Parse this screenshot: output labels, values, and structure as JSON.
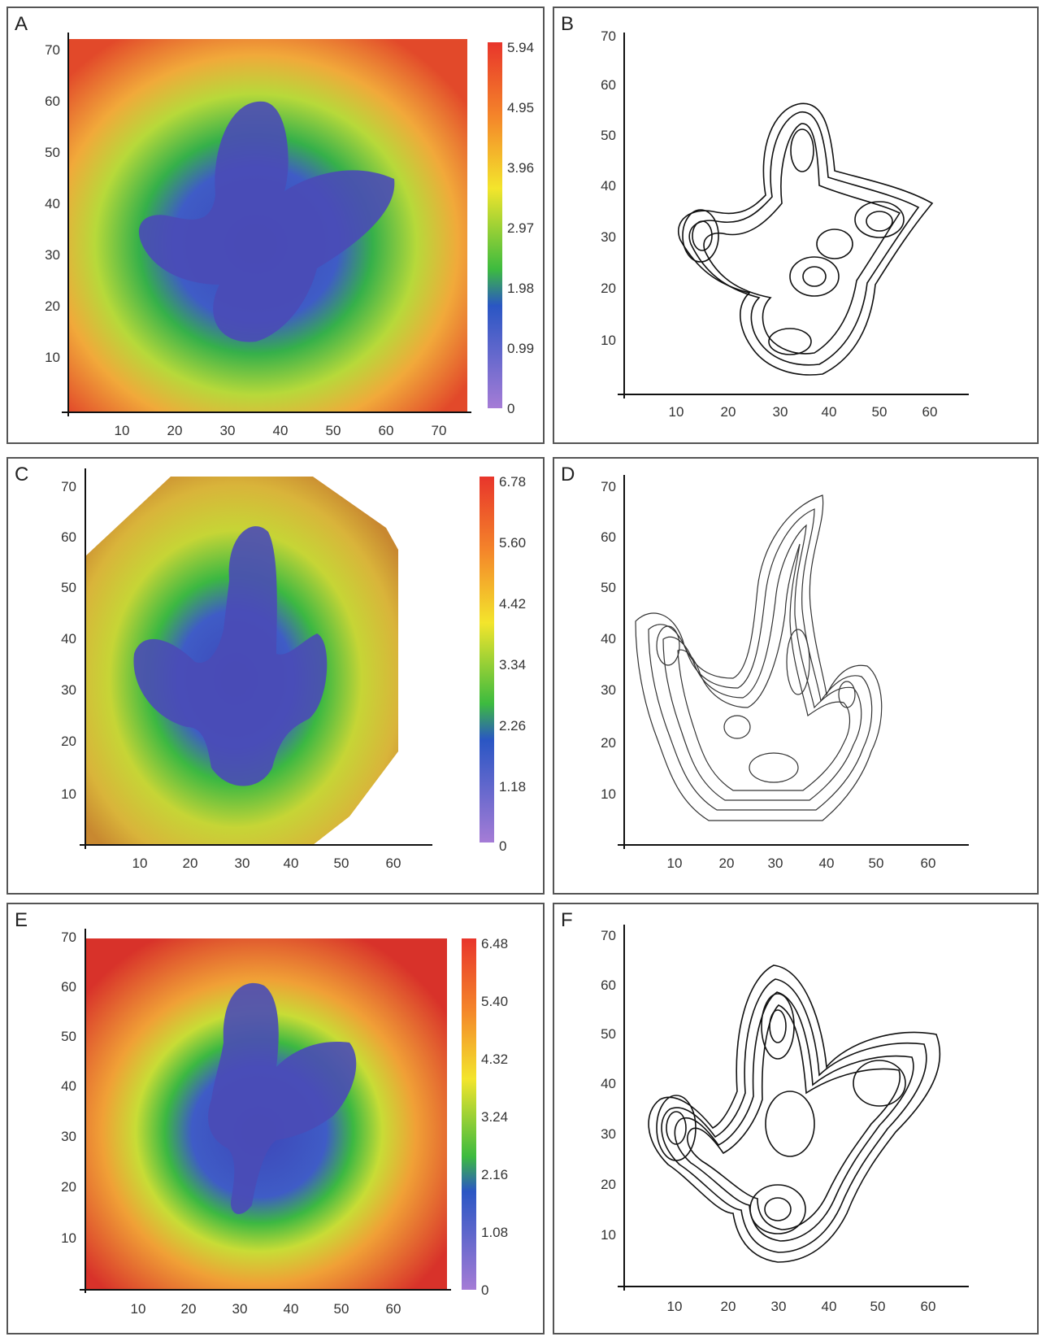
{
  "figure": {
    "panels": [
      {
        "letter": "A",
        "kind": "heatmap",
        "x_ticks": [
          10,
          20,
          30,
          40,
          50,
          60,
          70
        ],
        "y_ticks": [
          10,
          20,
          30,
          40,
          50,
          60,
          70
        ],
        "xlim": [
          0,
          74
        ],
        "ylim": [
          0,
          72
        ],
        "colorbar": [
          "5.94",
          "4.95",
          "3.96",
          "2.97",
          "1.98",
          "0.99",
          "0"
        ]
      },
      {
        "letter": "B",
        "kind": "contour",
        "x_ticks": [
          10,
          20,
          30,
          40,
          50,
          60
        ],
        "y_ticks": [
          10,
          20,
          30,
          40,
          50,
          60,
          70
        ],
        "xlim": [
          0,
          68
        ],
        "ylim": [
          0,
          73
        ]
      },
      {
        "letter": "C",
        "kind": "heatmap",
        "x_ticks": [
          10,
          20,
          30,
          40,
          50,
          60
        ],
        "y_ticks": [
          10,
          20,
          30,
          40,
          50,
          60,
          70
        ],
        "xlim": [
          0,
          67
        ],
        "ylim": [
          0,
          72
        ],
        "colorbar": [
          "6.78",
          "5.60",
          "4.42",
          "3.34",
          "2.26",
          "1.18",
          "0"
        ]
      },
      {
        "letter": "D",
        "kind": "contour",
        "x_ticks": [
          10,
          20,
          30,
          40,
          50,
          60
        ],
        "y_ticks": [
          10,
          20,
          30,
          40,
          50,
          60,
          70
        ],
        "xlim": [
          0,
          68
        ],
        "ylim": [
          0,
          73
        ]
      },
      {
        "letter": "E",
        "kind": "heatmap",
        "x_ticks": [
          10,
          20,
          30,
          40,
          50,
          60
        ],
        "y_ticks": [
          10,
          20,
          30,
          40,
          50,
          60,
          70
        ],
        "xlim": [
          0,
          67
        ],
        "ylim": [
          0,
          72
        ],
        "colorbar": [
          "6.48",
          "5.40",
          "4.32",
          "3.24",
          "2.16",
          "1.08",
          "0"
        ]
      },
      {
        "letter": "F",
        "kind": "contour",
        "x_ticks": [
          10,
          20,
          30,
          40,
          50,
          60
        ],
        "y_ticks": [
          10,
          20,
          30,
          40,
          50,
          60,
          70
        ],
        "xlim": [
          0,
          68
        ],
        "ylim": [
          0,
          73
        ]
      }
    ]
  },
  "chart_data": [
    {
      "type": "heatmap",
      "panel": "A",
      "xlim": [
        0,
        74
      ],
      "ylim": [
        0,
        72
      ],
      "colorbar_ticks": [
        5.94,
        4.95,
        3.96,
        2.97,
        1.98,
        0.99,
        0
      ]
    },
    {
      "type": "contour",
      "panel": "B",
      "xlim": [
        0,
        68
      ],
      "ylim": [
        0,
        73
      ]
    },
    {
      "type": "heatmap",
      "panel": "C",
      "xlim": [
        0,
        67
      ],
      "ylim": [
        0,
        72
      ],
      "colorbar_ticks": [
        6.78,
        5.6,
        4.42,
        3.34,
        2.26,
        1.18,
        0
      ]
    },
    {
      "type": "contour",
      "panel": "D",
      "xlim": [
        0,
        68
      ],
      "ylim": [
        0,
        73
      ]
    },
    {
      "type": "heatmap",
      "panel": "E",
      "xlim": [
        0,
        67
      ],
      "ylim": [
        0,
        72
      ],
      "colorbar_ticks": [
        6.48,
        5.4,
        4.32,
        3.24,
        2.16,
        1.08,
        0
      ]
    },
    {
      "type": "contour",
      "panel": "F",
      "xlim": [
        0,
        68
      ],
      "ylim": [
        0,
        73
      ]
    }
  ]
}
